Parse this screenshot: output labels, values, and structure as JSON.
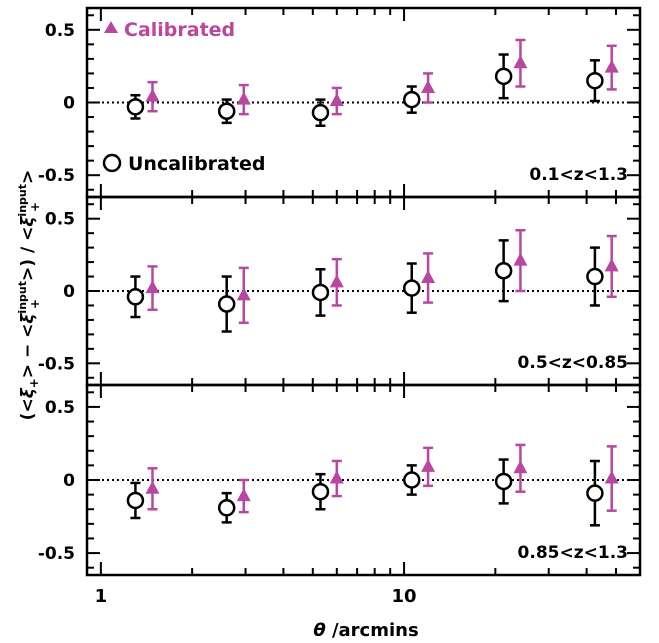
{
  "colors": {
    "uncalibrated": "#000000",
    "calibrated": "#b9479f",
    "reference_line": "#000000"
  },
  "y_axis_label": {
    "open": "(<",
    "xi": "ξ",
    "sub_plus": "+",
    "mid": "> − <",
    "sup_input": "input",
    "close_mid": ">) / <",
    "close_end": ">"
  },
  "x_axis_label": {
    "theta": "θ",
    "rest": " /arcmins"
  },
  "chart_data": [
    {
      "type": "scatter",
      "panel_label": "0.1<z<1.3",
      "x_scale": "log",
      "xlim": [
        0.9,
        60
      ],
      "ylim": [
        -0.65,
        0.65
      ],
      "x_ticks": [
        1,
        10
      ],
      "x_tick_labels": [
        "1",
        "10"
      ],
      "y_ticks": [
        -0.5,
        0,
        0.5
      ],
      "y_tick_labels": [
        "-0.5",
        "0",
        "0.5"
      ],
      "reference_line_y": 0,
      "legend": {
        "calibrated": "Calibrated",
        "uncalibrated": "Uncalibrated"
      },
      "series": [
        {
          "name": "Uncalibrated",
          "marker": "open-circle",
          "x": [
            1.3,
            2.6,
            5.3,
            10.6,
            21.3,
            42.6
          ],
          "y": [
            -0.03,
            -0.06,
            -0.07,
            0.02,
            0.18,
            0.15
          ],
          "err": [
            0.08,
            0.08,
            0.09,
            0.09,
            0.15,
            0.14
          ]
        },
        {
          "name": "Calibrated",
          "marker": "filled-triangle",
          "x": [
            1.48,
            2.96,
            6.0,
            12.0,
            24.2,
            48.4
          ],
          "y": [
            0.04,
            0.02,
            0.01,
            0.1,
            0.27,
            0.24
          ],
          "err": [
            0.1,
            0.1,
            0.09,
            0.1,
            0.16,
            0.15
          ]
        }
      ]
    },
    {
      "type": "scatter",
      "panel_label": "0.5<z<0.85",
      "x_scale": "log",
      "xlim": [
        0.9,
        60
      ],
      "ylim": [
        -0.65,
        0.65
      ],
      "x_ticks": [
        1,
        10
      ],
      "x_tick_labels": [
        "1",
        "10"
      ],
      "y_ticks": [
        -0.5,
        0,
        0.5
      ],
      "y_tick_labels": [
        "-0.5",
        "0",
        "0.5"
      ],
      "reference_line_y": 0,
      "series": [
        {
          "name": "Uncalibrated",
          "marker": "open-circle",
          "x": [
            1.3,
            2.6,
            5.3,
            10.6,
            21.3,
            42.6
          ],
          "y": [
            -0.04,
            -0.09,
            -0.01,
            0.02,
            0.14,
            0.1
          ],
          "err": [
            0.14,
            0.19,
            0.16,
            0.17,
            0.21,
            0.2
          ]
        },
        {
          "name": "Calibrated",
          "marker": "filled-triangle",
          "x": [
            1.48,
            2.96,
            6.0,
            12.0,
            24.2,
            48.4
          ],
          "y": [
            0.02,
            -0.03,
            0.06,
            0.09,
            0.21,
            0.17
          ],
          "err": [
            0.15,
            0.19,
            0.16,
            0.17,
            0.21,
            0.21
          ]
        }
      ]
    },
    {
      "type": "scatter",
      "panel_label": "0.85<z<1.3",
      "x_scale": "log",
      "xlim": [
        0.9,
        60
      ],
      "ylim": [
        -0.65,
        0.65
      ],
      "x_ticks": [
        1,
        10
      ],
      "x_tick_labels": [
        "1",
        "10"
      ],
      "y_ticks": [
        -0.5,
        0,
        0.5
      ],
      "y_tick_labels": [
        "-0.5",
        "0",
        "0.5"
      ],
      "reference_line_y": 0,
      "series": [
        {
          "name": "Uncalibrated",
          "marker": "open-circle",
          "x": [
            1.3,
            2.6,
            5.3,
            10.6,
            21.3,
            42.6
          ],
          "y": [
            -0.14,
            -0.19,
            -0.08,
            0.0,
            -0.01,
            -0.09
          ],
          "err": [
            0.12,
            0.1,
            0.12,
            0.1,
            0.15,
            0.22
          ]
        },
        {
          "name": "Calibrated",
          "marker": "filled-triangle",
          "x": [
            1.48,
            2.96,
            6.0,
            12.0,
            24.2,
            48.4
          ],
          "y": [
            -0.06,
            -0.11,
            0.01,
            0.09,
            0.08,
            0.01
          ],
          "err": [
            0.14,
            0.11,
            0.12,
            0.13,
            0.16,
            0.22
          ]
        }
      ]
    }
  ]
}
